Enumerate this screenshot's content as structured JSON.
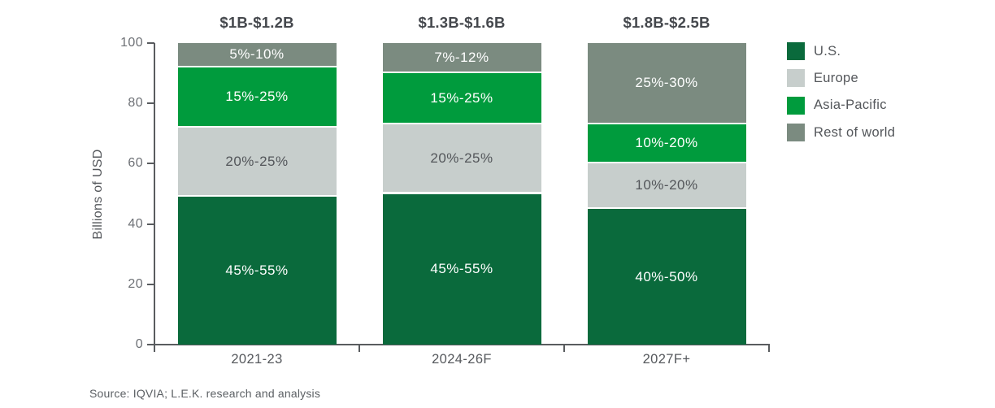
{
  "chart_data": {
    "type": "bar",
    "stacked": true,
    "ylabel": "Billions of USD",
    "ylim": [
      0,
      100
    ],
    "yticks": [
      0,
      20,
      40,
      60,
      80,
      100
    ],
    "grid": false,
    "legend_position": "right",
    "categories": [
      "2021-23",
      "2024-26F",
      "2027F+"
    ],
    "category_headers": [
      "$1B-$1.2B",
      "$1.3B-$1.6B",
      "$1.8B-$2.5B"
    ],
    "series": [
      {
        "name": "U.S.",
        "color": "#0a6a3c",
        "label_color": "#ffffff",
        "values": [
          49,
          50,
          45
        ],
        "segment_labels": [
          "45%-55%",
          "45%-55%",
          "40%-50%"
        ]
      },
      {
        "name": "Europe",
        "color": "#c7cecc",
        "label_color": "#53565a",
        "values": [
          23,
          23,
          15
        ],
        "segment_labels": [
          "20%-25%",
          "20%-25%",
          "10%-20%"
        ]
      },
      {
        "name": "Asia-Pacific",
        "color": "#009b3d",
        "label_color": "#ffffff",
        "values": [
          20,
          17,
          13
        ],
        "segment_labels": [
          "15%-25%",
          "15%-25%",
          "10%-20%"
        ]
      },
      {
        "name": "Rest of world",
        "color": "#7b8b80",
        "label_color": "#ffffff",
        "values": [
          8,
          10,
          27
        ],
        "segment_labels": [
          "5%-10%",
          "7%-12%",
          "25%-30%"
        ]
      }
    ]
  },
  "source": "Source: IQVIA; L.E.K. research and analysis"
}
